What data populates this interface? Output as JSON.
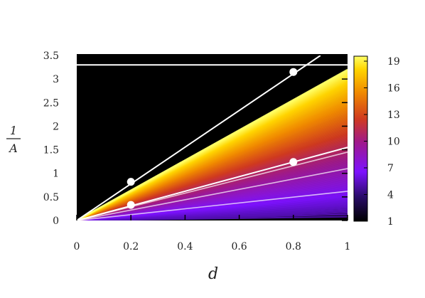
{
  "chart_data": {
    "type": "line",
    "xlabel": "d",
    "ylabel_numerator": "1",
    "ylabel_denominator": "A",
    "xlim": [
      0,
      1
    ],
    "ylim": [
      0,
      3.5
    ],
    "x_ticks": [
      "0",
      "0.2",
      "0.4",
      "0.6",
      "0.8",
      "1"
    ],
    "y_ticks": [
      "0",
      "0.5",
      "1",
      "1.5",
      "2",
      "2.5",
      "3",
      "3.5"
    ],
    "colorbar": {
      "min": 1,
      "max": 19,
      "ticks": [
        "1",
        "4",
        "7",
        "10",
        "13",
        "16",
        "19"
      ],
      "colors": [
        "#000000",
        "#3a0a7a",
        "#7d12ff",
        "#b02a80",
        "#d04a1a",
        "#f08a00",
        "#ffd400",
        "#ffff66"
      ]
    },
    "family_of_lines": {
      "description_series_count": 19,
      "top_slope": 3.2,
      "bottom_slope": 0.08
    },
    "overlay_lines": [
      {
        "type": "horizontal",
        "y": 3.3,
        "color": "#ffffff"
      },
      {
        "type": "diagonal",
        "x0": 0,
        "y0": 0,
        "x1": 0.9,
        "y1": 3.5,
        "color": "#ffffff"
      },
      {
        "type": "diagonal",
        "x0": 0,
        "y0": 0,
        "x1": 1.0,
        "y1": 1.55,
        "color": "#ffffff"
      }
    ],
    "points": [
      {
        "x": 0.2,
        "y": 0.82
      },
      {
        "x": 0.8,
        "y": 3.15
      },
      {
        "x": 0.2,
        "y": 0.33
      },
      {
        "x": 0.8,
        "y": 1.24
      }
    ]
  }
}
